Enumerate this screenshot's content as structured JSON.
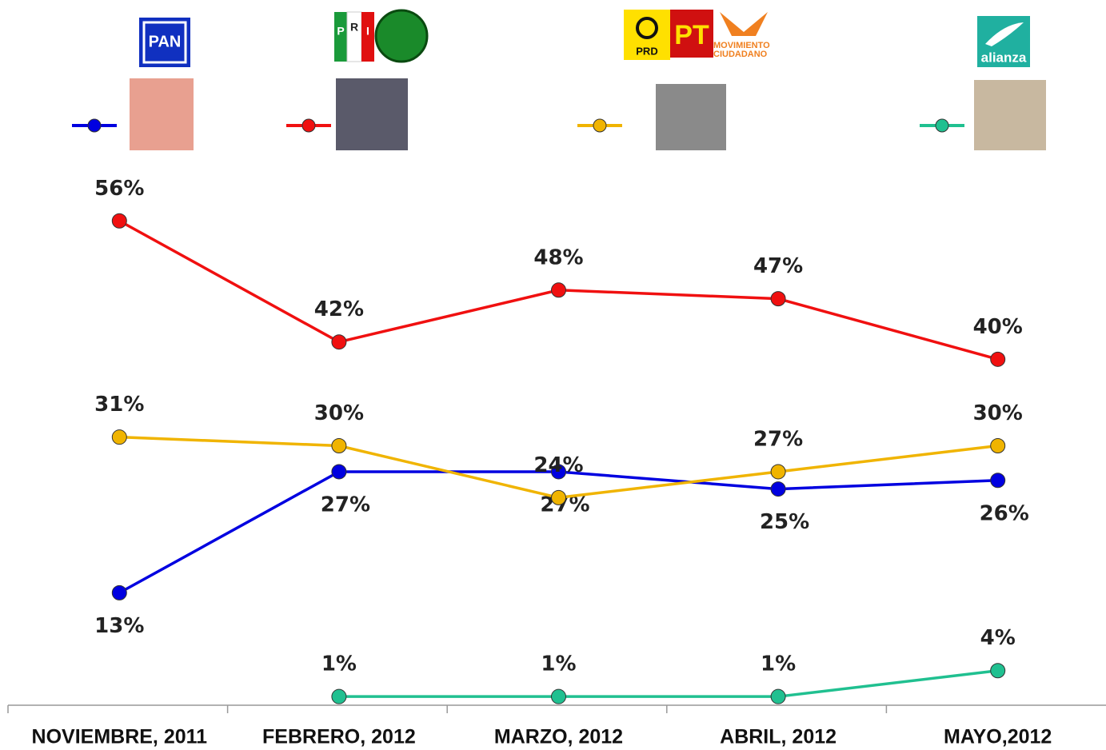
{
  "chart_data": {
    "type": "line",
    "logos": [
      "PAN",
      "P",
      "R",
      "I",
      "PRD",
      "PT",
      "MOVIMIENTO",
      "CIUDADANO",
      "alianza"
    ],
    "categories": [
      "NOVIEMBRE, 2011",
      "FEBRERO, 2012",
      "MARZO, 2012",
      "ABRIL, 2012",
      "MAYO,2012"
    ],
    "series": [
      {
        "color": "#0000e0",
        "values": [
          13,
          27,
          27,
          25,
          26
        ],
        "value_labels": [
          "13%",
          "27%",
          "27%",
          "25%",
          "26%"
        ]
      },
      {
        "color": "#f01010",
        "values": [
          56,
          42,
          48,
          47,
          40
        ],
        "value_labels": [
          "56%",
          "42%",
          "48%",
          "47%",
          "40%"
        ]
      },
      {
        "color": "#f0b400",
        "values": [
          31,
          30,
          24,
          27,
          30
        ],
        "value_labels": [
          "31%",
          "30%",
          "24%",
          "27%",
          "30%"
        ]
      },
      {
        "color": "#20c090",
        "values": [
          null,
          1,
          1,
          1,
          4
        ],
        "value_labels": [
          null,
          "1%",
          "1%",
          "1%",
          "4%"
        ]
      }
    ],
    "ylim": [
      0,
      60
    ]
  }
}
